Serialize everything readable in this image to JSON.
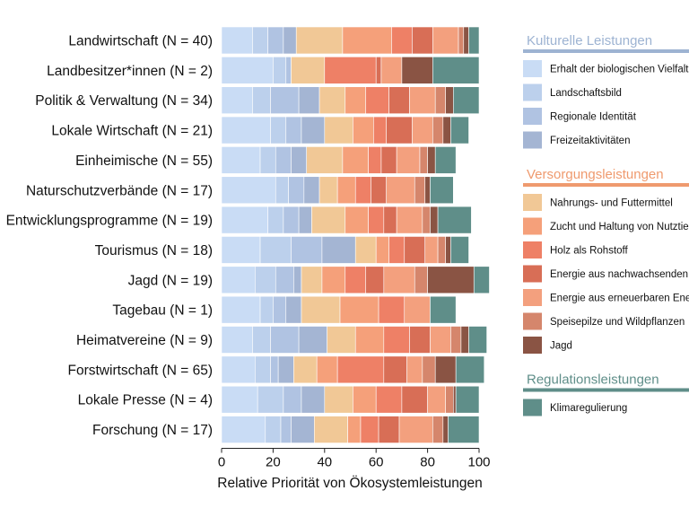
{
  "chart_data": {
    "type": "bar",
    "orientation": "horizontal",
    "stacked": true,
    "xlabel": "Relative Priorität von Ökosystemleistungen",
    "xlim": [
      0,
      100
    ],
    "xticks": [
      0,
      20,
      40,
      60,
      80,
      100
    ],
    "categories": [
      "Landwirtschaft (N = 40)",
      "Landbesitzer*innen (N = 2)",
      "Politik & Verwaltung (N = 34)",
      "Lokale Wirtschaft (N = 21)",
      "Einheimische (N = 55)",
      "Naturschutzverbände (N = 17)",
      "Entwicklungsprogramme (N = 19)",
      "Tourismus (N = 18)",
      "Jagd (N = 19)",
      "Tagebau (N = 1)",
      "Heimatvereine (N = 9)",
      "Forstwirtschaft (N = 65)",
      "Lokale Presse (N = 4)",
      "Forschung (N = 17)"
    ],
    "legend_groups": [
      {
        "title": "Kulturelle Leistungen",
        "color": "#9db3d2",
        "series": [
          0,
          1,
          2,
          3
        ]
      },
      {
        "title": "Versorgungsleistungen",
        "color": "#ef9a6e",
        "series": [
          4,
          5,
          6,
          7,
          8,
          9,
          10
        ]
      },
      {
        "title": "Regulationsleistungen",
        "color": "#5f8e89",
        "series": [
          11
        ]
      }
    ],
    "series": [
      {
        "name": "Erhalt der biologischen Vielfalt",
        "color": "#c9dcf5",
        "values": [
          12,
          20,
          12,
          19,
          15,
          21,
          18,
          15,
          13,
          15,
          12,
          13,
          14,
          17
        ]
      },
      {
        "name": "Landschaftsbild",
        "color": "#bcd0ec",
        "values": [
          6,
          5,
          7,
          6,
          6,
          5,
          6,
          12,
          8,
          5,
          7,
          6,
          10,
          6
        ]
      },
      {
        "name": "Regionale Identität",
        "color": "#b0c3e2",
        "values": [
          6,
          2,
          11,
          6,
          6,
          6,
          6,
          12,
          7,
          5,
          11,
          3,
          7,
          4
        ]
      },
      {
        "name": "Freizeitaktivitäten",
        "color": "#a4b5d3",
        "values": [
          5,
          0,
          8,
          9,
          6,
          6,
          5,
          13,
          3,
          6,
          11,
          6,
          9,
          9
        ]
      },
      {
        "name": "Nahrungs- und Futtermittel",
        "color": "#f1c896",
        "values": [
          18,
          13,
          10,
          11,
          14,
          7,
          13,
          8,
          8,
          15,
          11,
          9,
          11,
          13
        ]
      },
      {
        "name": "Zucht und Haltung von Nutztieren",
        "color": "#f5a07a",
        "values": [
          19,
          0,
          8,
          8,
          10,
          7,
          9,
          5,
          9,
          15,
          11,
          8,
          9,
          5
        ]
      },
      {
        "name": "Holz als Rohstoff",
        "color": "#ee8066",
        "values": [
          8,
          20,
          9,
          5,
          5,
          6,
          6,
          6,
          8,
          10,
          10,
          18,
          10,
          7
        ]
      },
      {
        "name": "Energie aus nachwachsenden Rohstoffen",
        "color": "#d86e56",
        "values": [
          8,
          2,
          8,
          10,
          6,
          6,
          5,
          8,
          7,
          0,
          8,
          9,
          10,
          8
        ]
      },
      {
        "name": "Energie aus erneuerbaren Energien",
        "color": "#f3a07e",
        "values": [
          10,
          8,
          10,
          8,
          9,
          11,
          10,
          5,
          12,
          10,
          8,
          6,
          7,
          13
        ]
      },
      {
        "name": "Speisepilze und Wildpflanzen",
        "color": "#d5866c",
        "values": [
          2,
          0,
          4,
          4,
          3,
          4,
          3,
          3,
          5,
          0,
          4,
          5,
          3,
          4
        ]
      },
      {
        "name": "Jagd",
        "color": "#8a5444",
        "values": [
          2,
          12,
          3,
          3,
          3,
          2,
          3,
          2,
          18,
          0,
          3,
          8,
          1,
          2
        ]
      },
      {
        "name": "Klimaregulierung",
        "color": "#5f8e89",
        "values": [
          4,
          18,
          10,
          7,
          8,
          9,
          13,
          7,
          6,
          10,
          7,
          11,
          9,
          12
        ]
      }
    ]
  }
}
